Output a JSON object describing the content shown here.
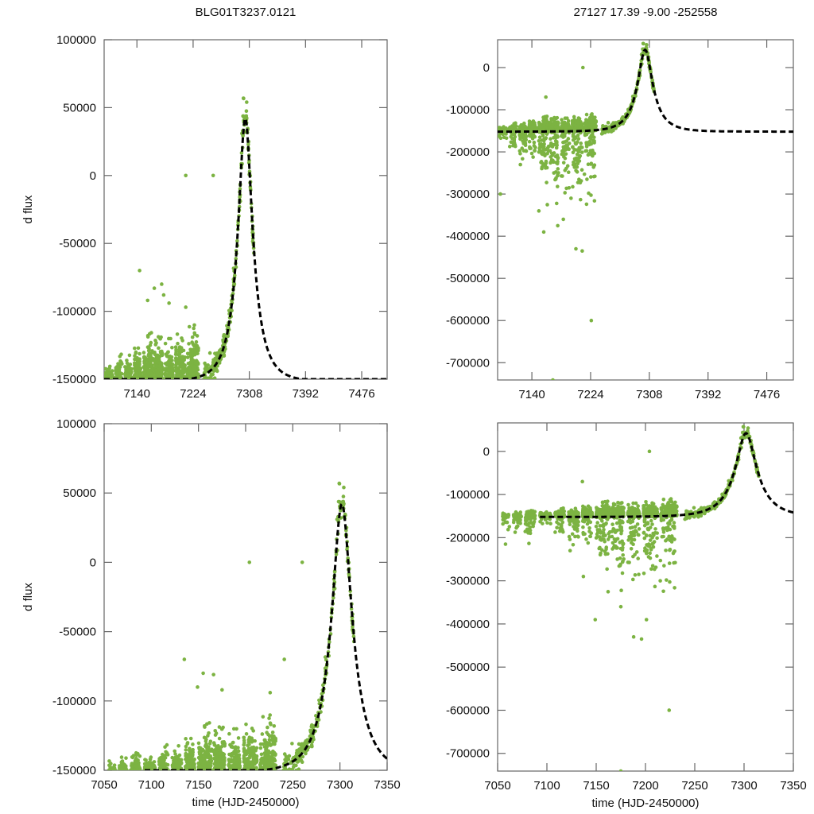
{
  "figure": {
    "title_left": "BLG01T3237.0121",
    "title_right": "27127  17.39  -9.00  -252558",
    "marker_color": "#7cb342",
    "model_color": "#000000"
  },
  "chart_data": [
    {
      "id": "top-left",
      "type": "scatter",
      "title": "BLG01T3237.0121",
      "xlabel": "",
      "ylabel": "d flux",
      "xlim": [
        7091,
        7514
      ],
      "ylim": [
        -150000,
        100000
      ],
      "xticks": [
        7140,
        7224,
        7308,
        7392,
        7476
      ],
      "yticks": [
        100000,
        50000,
        0,
        -50000,
        -100000,
        -150000
      ],
      "model": {
        "name": "microlensing fit",
        "t0": 7302,
        "peak": 42000,
        "baseline": -152000,
        "tE": 30,
        "style": "dashed"
      },
      "outliers": [
        [
          7213,
          0
        ],
        [
          7254,
          0
        ],
        [
          7144,
          -70000
        ],
        [
          7166,
          -83000
        ],
        [
          7177,
          -80000
        ],
        [
          7180,
          -88000
        ],
        [
          7156,
          -92000
        ],
        [
          7188,
          -94000
        ],
        [
          7213,
          -97000
        ]
      ]
    },
    {
      "id": "top-right",
      "type": "scatter",
      "title": "27127  17.39  -9.00  -252558",
      "xlabel": "",
      "ylabel": "",
      "xlim": [
        7091,
        7514
      ],
      "ylim": [
        -741000,
        66000
      ],
      "xticks": [
        7140,
        7224,
        7308,
        7392,
        7476
      ],
      "yticks": [
        0,
        -100000,
        -200000,
        -300000,
        -400000,
        -500000,
        -600000,
        -700000
      ],
      "model": {
        "name": "microlensing fit",
        "t0": 7302,
        "peak": 42000,
        "baseline": -152000,
        "tE": 30,
        "style": "dashed"
      },
      "outliers": [
        [
          7160,
          -70000
        ],
        [
          7213,
          0
        ],
        [
          7095,
          -300000
        ],
        [
          7157,
          -390000
        ],
        [
          7177,
          -375000
        ],
        [
          7203,
          -430000
        ],
        [
          7212,
          -435000
        ],
        [
          7225,
          -600000
        ],
        [
          7170,
          -741000
        ],
        [
          7150,
          -340000
        ],
        [
          7185,
          -360000
        ],
        [
          7196,
          -310000
        ]
      ]
    },
    {
      "id": "bottom-left",
      "type": "scatter",
      "title": "",
      "xlabel": "time (HJD-2450000)",
      "ylabel": "d flux",
      "xlim": [
        7050,
        7350
      ],
      "ylim": [
        -150000,
        100000
      ],
      "xticks": [
        7050,
        7100,
        7150,
        7200,
        7250,
        7300,
        7350
      ],
      "yticks": [
        100000,
        50000,
        0,
        -50000,
        -100000,
        -150000
      ],
      "model": {
        "name": "microlensing fit",
        "t0": 7302,
        "peak": 42000,
        "baseline": -152000,
        "tE": 30,
        "style": "dashed",
        "xstart": 7093
      },
      "outliers": [
        [
          7204,
          0
        ],
        [
          7260,
          0
        ],
        [
          7135,
          -70000
        ],
        [
          7155,
          -80000
        ],
        [
          7166,
          -81000
        ],
        [
          7149,
          -90000
        ],
        [
          7175,
          -92000
        ],
        [
          7226,
          -94000
        ],
        [
          7241,
          -70000
        ]
      ]
    },
    {
      "id": "bottom-right",
      "type": "scatter",
      "title": "",
      "xlabel": "time (HJD-2450000)",
      "ylabel": "",
      "xlim": [
        7050,
        7350
      ],
      "ylim": [
        -741000,
        66000
      ],
      "xticks": [
        7050,
        7100,
        7150,
        7200,
        7250,
        7300,
        7350
      ],
      "yticks": [
        0,
        -100000,
        -200000,
        -300000,
        -400000,
        -500000,
        -600000,
        -700000
      ],
      "model": {
        "name": "microlensing fit",
        "t0": 7302,
        "peak": 42000,
        "baseline": -152000,
        "tE": 30,
        "style": "dashed",
        "xstart": 7093
      },
      "outliers": [
        [
          7136,
          -70000
        ],
        [
          7204,
          0
        ],
        [
          7058,
          -215000
        ],
        [
          7137,
          -290000
        ],
        [
          7175,
          -360000
        ],
        [
          7149,
          -390000
        ],
        [
          7188,
          -430000
        ],
        [
          7196,
          -435000
        ],
        [
          7224,
          -600000
        ],
        [
          7175,
          -741000
        ],
        [
          7201,
          -390000
        ],
        [
          7215,
          -300000
        ]
      ]
    }
  ]
}
